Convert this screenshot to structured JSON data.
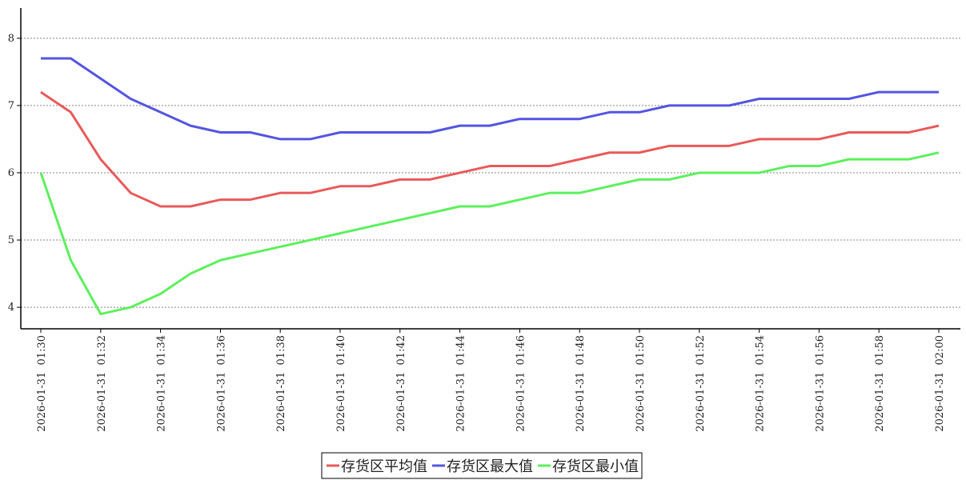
{
  "chart_data": {
    "type": "line",
    "categories": [
      "2026-01-31  01:30",
      null,
      "2026-01-31  01:32",
      null,
      "2026-01-31  01:34",
      null,
      "2026-01-31  01:36",
      null,
      "2026-01-31  01:38",
      null,
      "2026-01-31  01:40",
      null,
      "2026-01-31  01:42",
      null,
      "2026-01-31  01:44",
      null,
      "2026-01-31  01:46",
      null,
      "2026-01-31  01:48",
      null,
      "2026-01-31  01:50",
      null,
      "2026-01-31  01:52",
      null,
      "2026-01-31  01:54",
      null,
      "2026-01-31  01:56",
      null,
      "2026-01-31  01:58",
      null,
      "2026-01-31  02:00"
    ],
    "series": [
      {
        "name": "存货区平均值",
        "color": "#e85a5a",
        "values": [
          7.2,
          6.9,
          6.2,
          5.7,
          5.5,
          5.5,
          5.6,
          5.6,
          5.7,
          5.7,
          5.8,
          5.8,
          5.9,
          5.9,
          6.0,
          6.1,
          6.1,
          6.1,
          6.2,
          6.3,
          6.3,
          6.4,
          6.4,
          6.4,
          6.5,
          6.5,
          6.5,
          6.6,
          6.6,
          6.6,
          6.7
        ]
      },
      {
        "name": "存货区最大值",
        "color": "#5555e0",
        "values": [
          7.7,
          7.7,
          7.4,
          7.1,
          6.9,
          6.7,
          6.6,
          6.6,
          6.5,
          6.5,
          6.6,
          6.6,
          6.6,
          6.6,
          6.7,
          6.7,
          6.8,
          6.8,
          6.8,
          6.9,
          6.9,
          7.0,
          7.0,
          7.0,
          7.1,
          7.1,
          7.1,
          7.1,
          7.2,
          7.2,
          7.2
        ]
      },
      {
        "name": "存货区最小值",
        "color": "#5cf05c",
        "values": [
          6.0,
          4.7,
          3.9,
          4.0,
          4.2,
          4.5,
          4.7,
          4.8,
          4.9,
          5.0,
          5.1,
          5.2,
          5.3,
          5.4,
          5.5,
          5.5,
          5.6,
          5.7,
          5.7,
          5.8,
          5.9,
          5.9,
          6.0,
          6.0,
          6.0,
          6.1,
          6.1,
          6.2,
          6.2,
          6.2,
          6.3
        ]
      }
    ],
    "ylim": [
      3.68,
      8.45
    ],
    "yticks": [
      4,
      5,
      6,
      7,
      8
    ],
    "grid": true,
    "legend": "bottom"
  }
}
